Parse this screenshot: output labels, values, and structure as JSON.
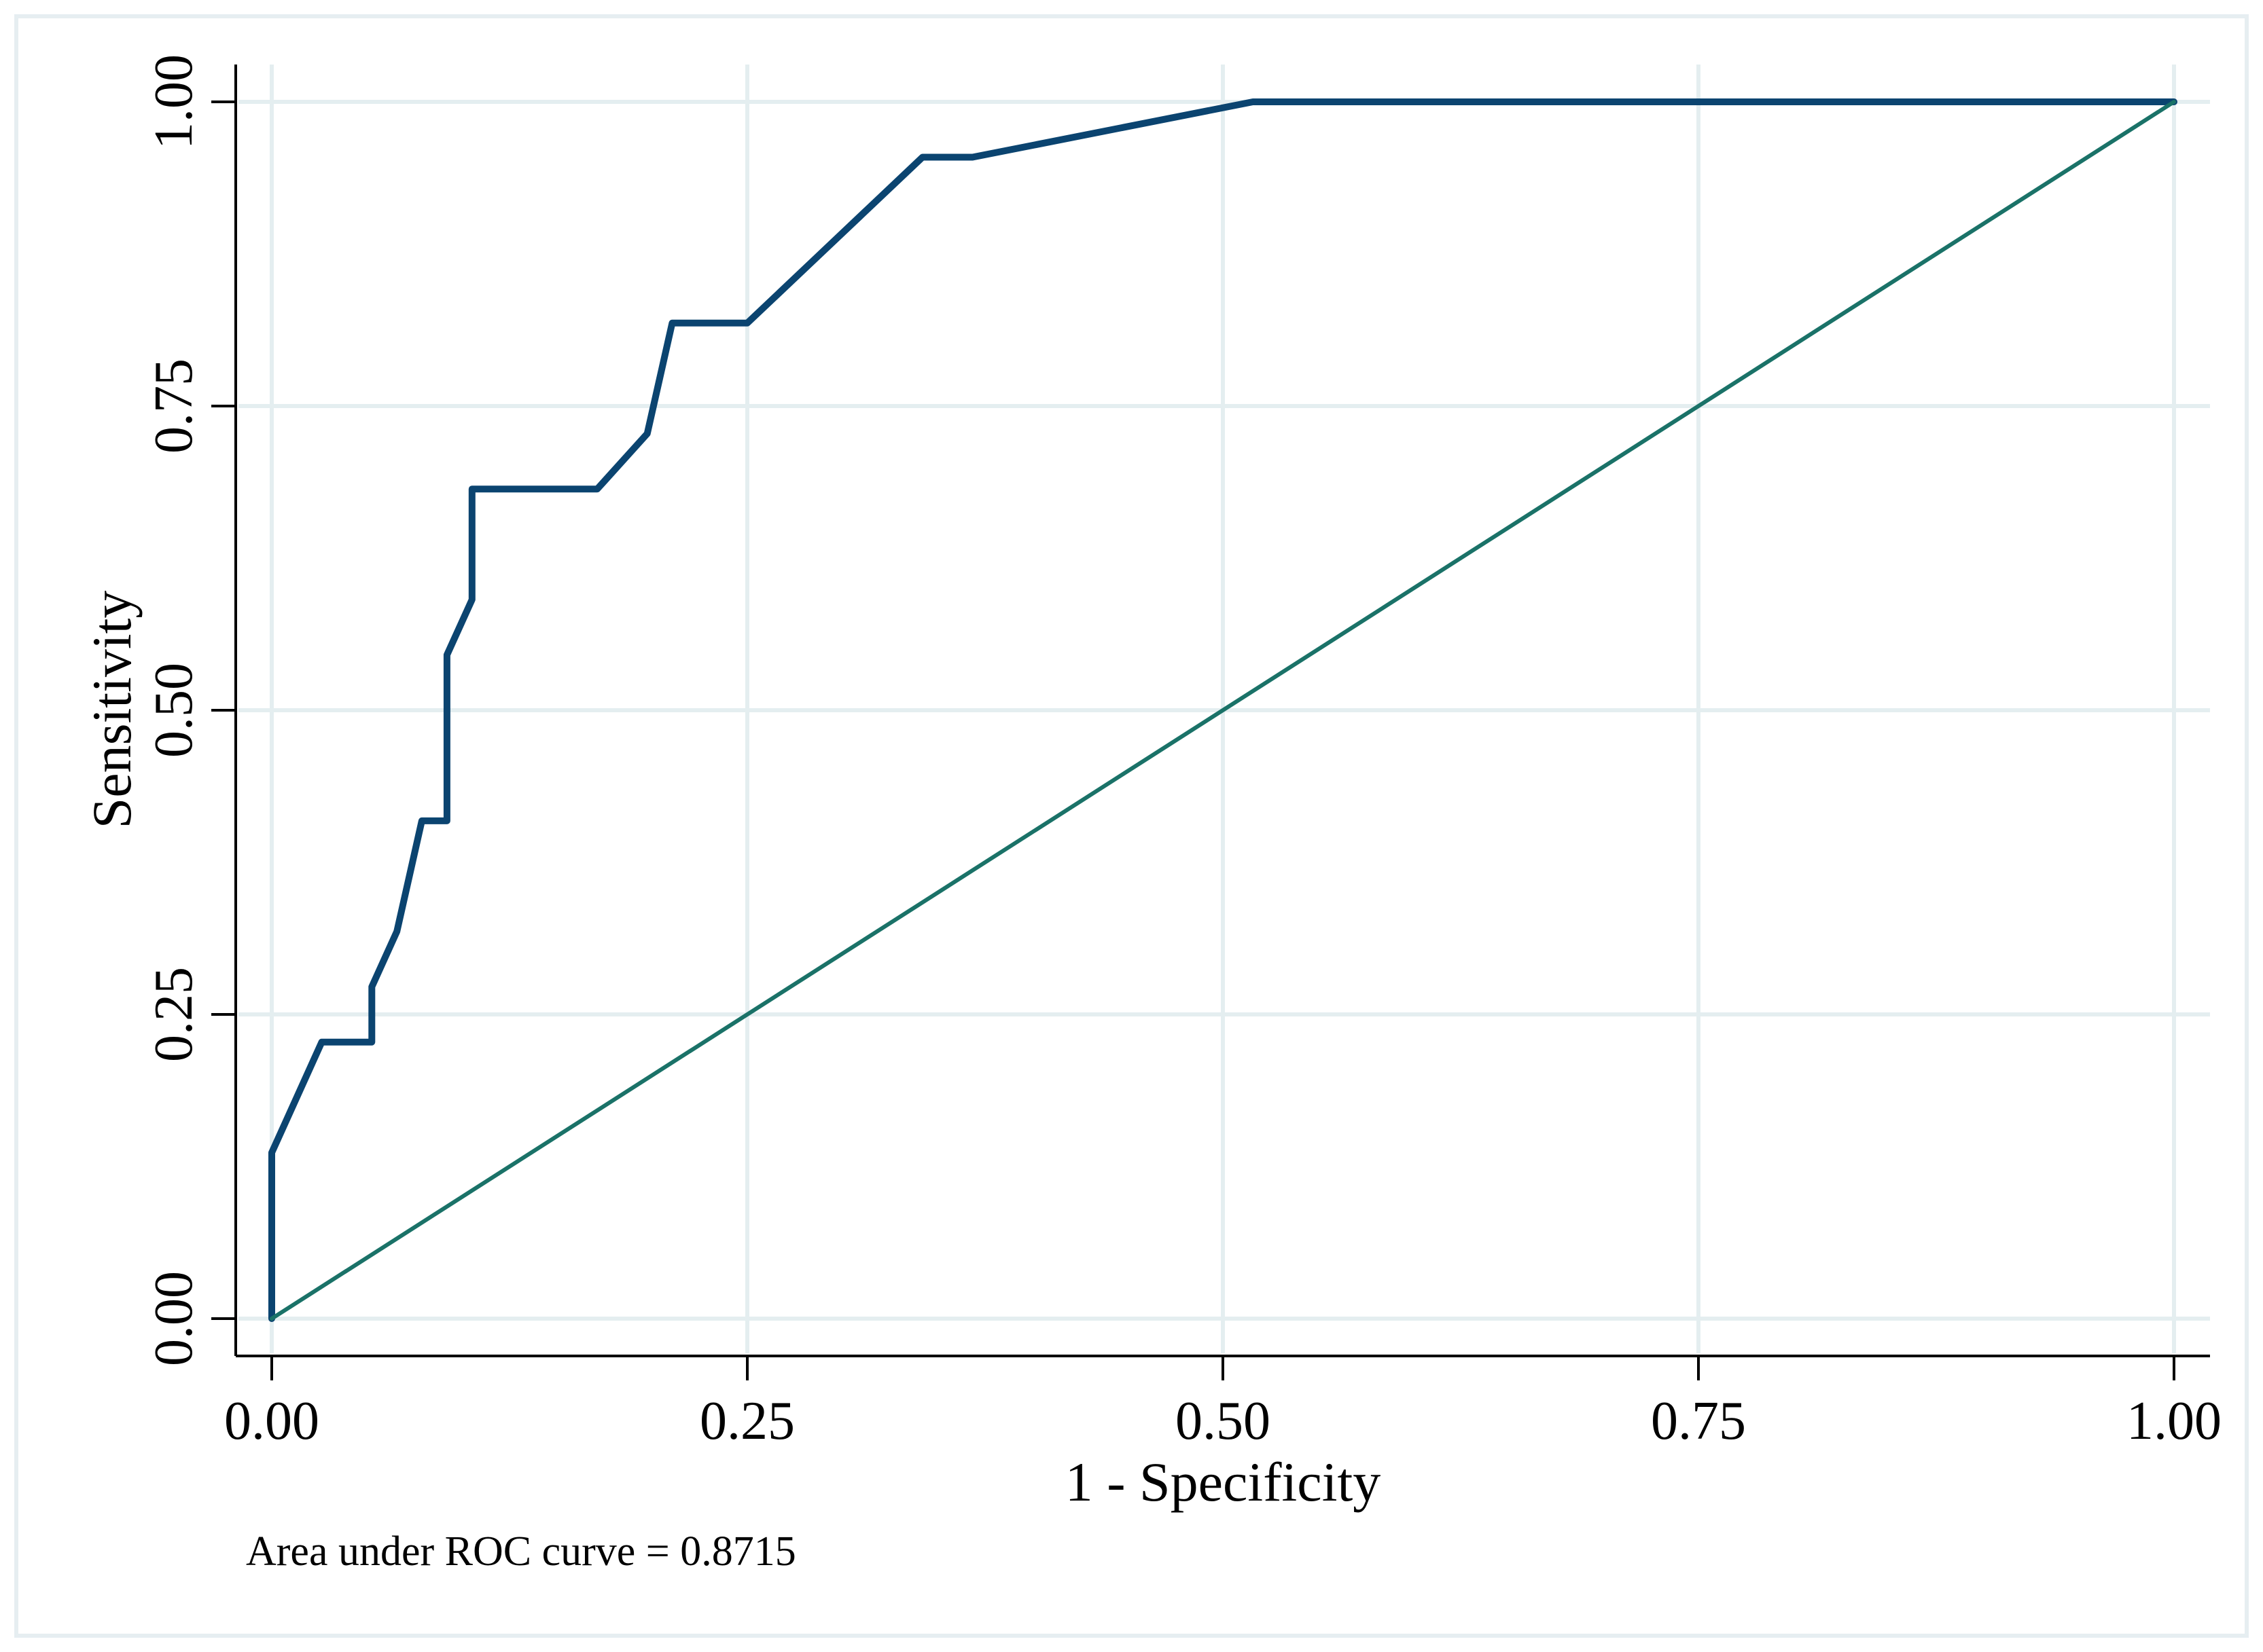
{
  "chart_data": {
    "type": "line",
    "title": "",
    "xlabel": "1 - Specificity",
    "ylabel": "Sensitivity",
    "xlim": [
      0,
      1
    ],
    "ylim": [
      0,
      1
    ],
    "x_ticks": [
      "0.00",
      "0.25",
      "0.50",
      "0.75",
      "1.00"
    ],
    "y_ticks": [
      "0.00",
      "0.25",
      "0.50",
      "0.75",
      "1.00"
    ],
    "grid": true,
    "legend": "none",
    "note": "Area under ROC curve = 0.8715",
    "series": [
      {
        "color": "#0b4470",
        "x": [
          0,
          0,
          0.0263,
          0.0526,
          0.0526,
          0.0658,
          0.0789,
          0.0921,
          0.0921,
          0.1053,
          0.1053,
          0.1711,
          0.1974,
          0.2105,
          0.25,
          0.3421,
          0.3684,
          0.5158,
          1.0
        ],
        "y": [
          0,
          0.1364,
          0.2273,
          0.2273,
          0.2727,
          0.3182,
          0.4091,
          0.4091,
          0.5455,
          0.5909,
          0.6818,
          0.6818,
          0.7273,
          0.8182,
          0.8182,
          0.9545,
          0.9545,
          1.0,
          1.0
        ]
      },
      {
        "color": "#1a7268",
        "x": [
          0,
          1
        ],
        "y": [
          0,
          1
        ]
      }
    ]
  }
}
